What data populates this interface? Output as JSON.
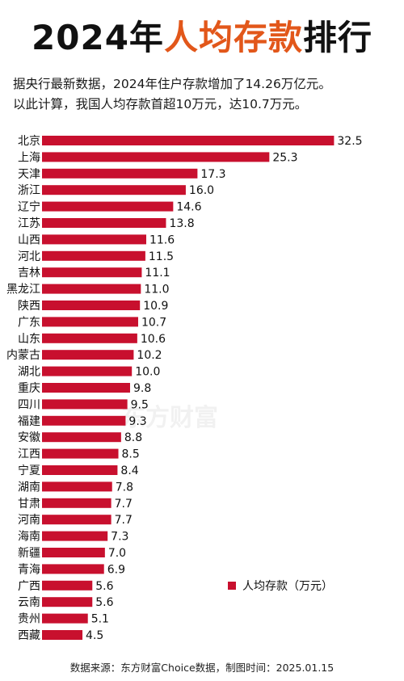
{
  "header": {
    "title_part1": "2024年",
    "title_part2": "人均存款",
    "title_part3": "排行",
    "subtitle_line1": "据央行最新数据，2024年住户存款增加了14.26万亿元。",
    "subtitle_line2": "以此计算，我国人均存款首超10万元，达10.7万元。"
  },
  "watermark": "东方财富",
  "footer": {
    "source": "数据来源：东方财富Choice数据，制图时间：2025.01.15"
  },
  "colors": {
    "bar": "#c8102e",
    "title_accent": "#e2571a"
  },
  "chart_data": {
    "type": "bar",
    "orientation": "horizontal",
    "categories": [
      "北京",
      "上海",
      "天津",
      "浙江",
      "辽宁",
      "江苏",
      "山西",
      "河北",
      "吉林",
      "黑龙江",
      "陕西",
      "广东",
      "山东",
      "内蒙古",
      "湖北",
      "重庆",
      "四川",
      "福建",
      "安徽",
      "江西",
      "宁夏",
      "湖南",
      "甘肃",
      "河南",
      "海南",
      "新疆",
      "青海",
      "广西",
      "云南",
      "贵州",
      "西藏"
    ],
    "series": [
      {
        "name": "人均存款（万元）",
        "values": [
          32.5,
          25.3,
          17.3,
          16.0,
          14.6,
          13.8,
          11.6,
          11.5,
          11.1,
          11.0,
          10.9,
          10.7,
          10.6,
          10.2,
          10.0,
          9.8,
          9.5,
          9.3,
          8.8,
          8.5,
          8.4,
          7.8,
          7.7,
          7.7,
          7.3,
          7.0,
          6.9,
          5.6,
          5.6,
          5.1,
          4.5
        ],
        "labels": [
          "32.5",
          "25.3",
          "17.3",
          "16.0",
          "14.6",
          "13.8",
          "11.6",
          "11.5",
          "11.1",
          "11.0",
          "10.9",
          "10.7",
          "10.6",
          "10.2",
          "10.0",
          "9.8",
          "9.5",
          "9.3",
          "8.8",
          "8.5",
          "8.4",
          "7.8",
          "7.7",
          "7.7",
          "7.3",
          "7.0",
          "6.9",
          "5.6",
          "5.6",
          "5.1",
          "4.5"
        ]
      }
    ],
    "legend": "bottom-right",
    "grid": false
  }
}
